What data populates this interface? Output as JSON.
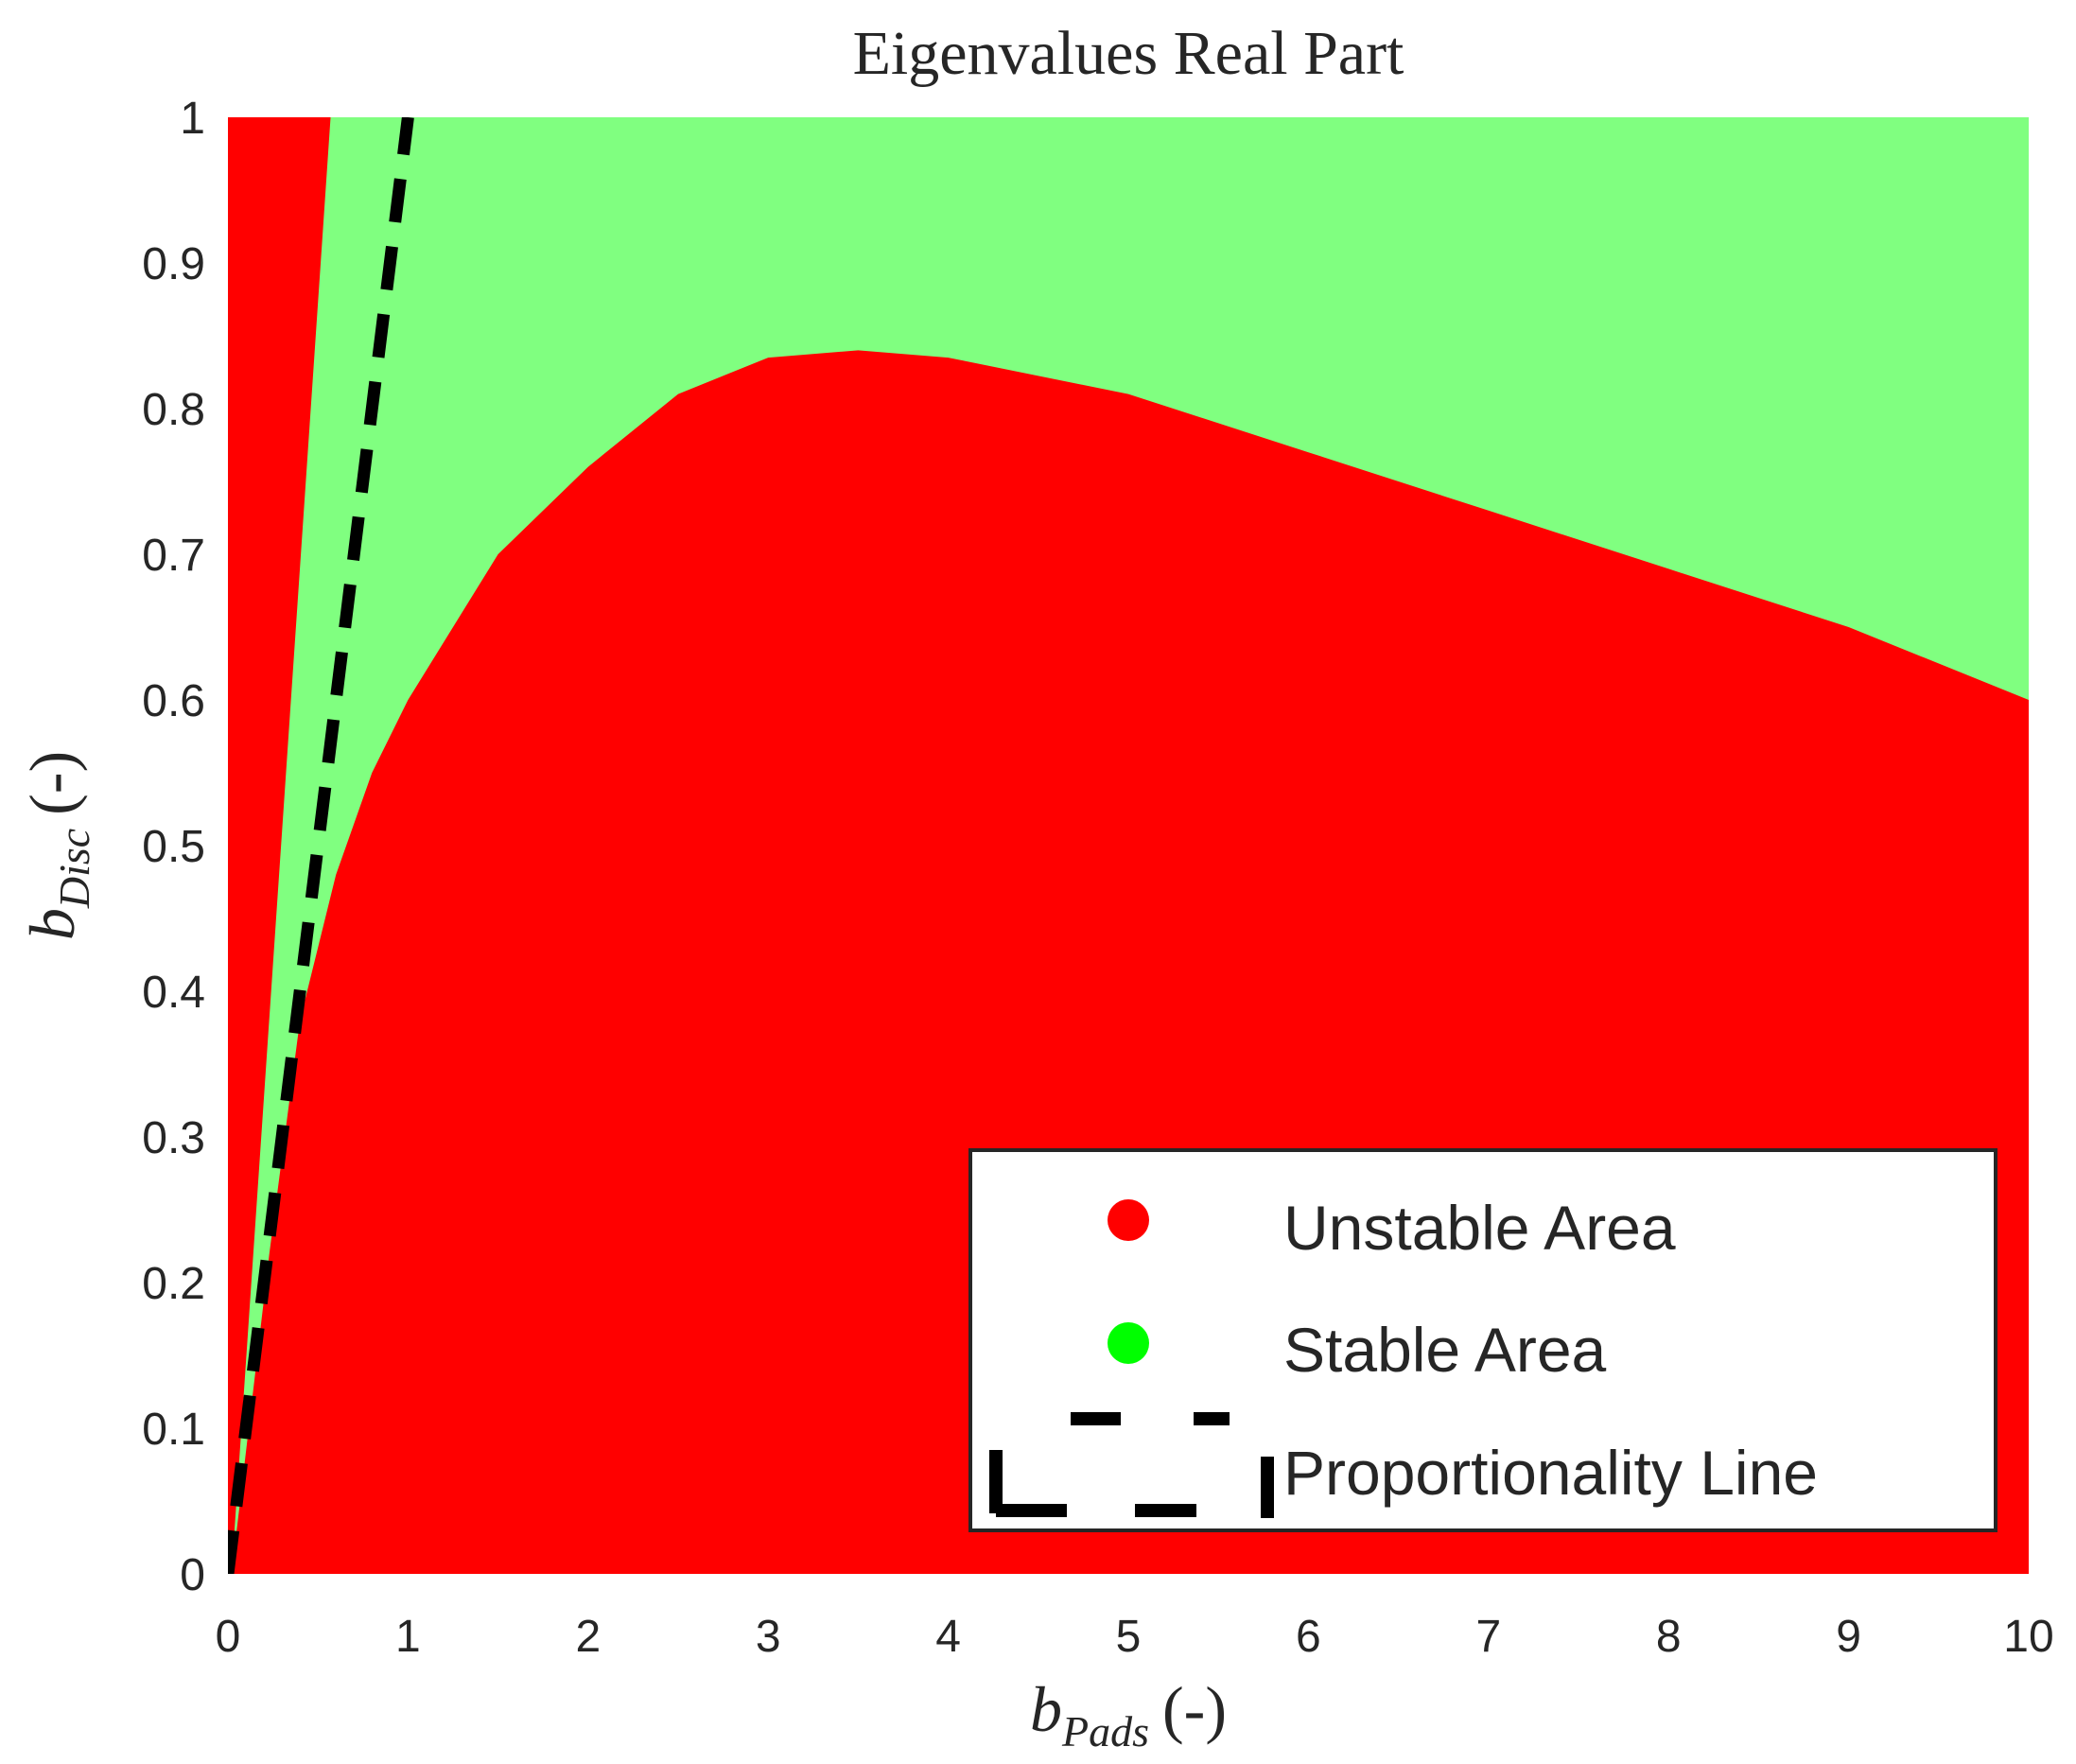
{
  "chart_data": {
    "type": "area",
    "title": "Eigenvalues Real Part",
    "xlabel": {
      "symbol": "b",
      "subscript": "Pads",
      "unit": "(-)"
    },
    "ylabel": {
      "symbol": "b",
      "subscript": "Disc",
      "unit": "(-)"
    },
    "xlim": [
      0,
      10
    ],
    "ylim": [
      0,
      1
    ],
    "xticks": [
      0,
      1,
      2,
      3,
      4,
      5,
      6,
      7,
      8,
      9,
      10
    ],
    "yticks": [
      0,
      0.1,
      0.2,
      0.3,
      0.4,
      0.5,
      0.6,
      0.7,
      0.8,
      0.9,
      1
    ],
    "grid": false,
    "legend_position": "bottom-right",
    "regions": {
      "background_label": "Unstable Area",
      "stable_label": "Stable Area",
      "stable_left_edge": [
        {
          "x": 0.02,
          "y": 0.0
        },
        {
          "x": 0.57,
          "y": 1.0
        }
      ],
      "stable_lower_boundary": [
        {
          "x": 0.23,
          "y": 0.22
        },
        {
          "x": 0.4,
          "y": 0.38
        },
        {
          "x": 0.6,
          "y": 0.48
        },
        {
          "x": 0.8,
          "y": 0.55
        },
        {
          "x": 1.0,
          "y": 0.6
        },
        {
          "x": 1.5,
          "y": 0.7
        },
        {
          "x": 2.0,
          "y": 0.76
        },
        {
          "x": 2.5,
          "y": 0.81
        },
        {
          "x": 3.0,
          "y": 0.835
        },
        {
          "x": 3.5,
          "y": 0.84
        },
        {
          "x": 4.0,
          "y": 0.835
        },
        {
          "x": 5.0,
          "y": 0.81
        },
        {
          "x": 6.0,
          "y": 0.77
        },
        {
          "x": 7.0,
          "y": 0.73
        },
        {
          "x": 8.0,
          "y": 0.69
        },
        {
          "x": 9.0,
          "y": 0.65
        },
        {
          "x": 10.0,
          "y": 0.6
        }
      ]
    },
    "series": [
      {
        "name": "Unstable Area",
        "color": "#ff0000",
        "marker": "circle"
      },
      {
        "name": "Stable Area",
        "color": "#00ff00",
        "marker": "circle"
      },
      {
        "name": "Proportionality Line",
        "color": "#000000",
        "style": "dashed",
        "x": [
          0,
          1
        ],
        "y": [
          0,
          1
        ]
      }
    ],
    "colors": {
      "unstable_fill": "#ff0000",
      "stable_fill": "#80ff80",
      "stable_marker": "#00ff00",
      "line": "#000000"
    }
  }
}
